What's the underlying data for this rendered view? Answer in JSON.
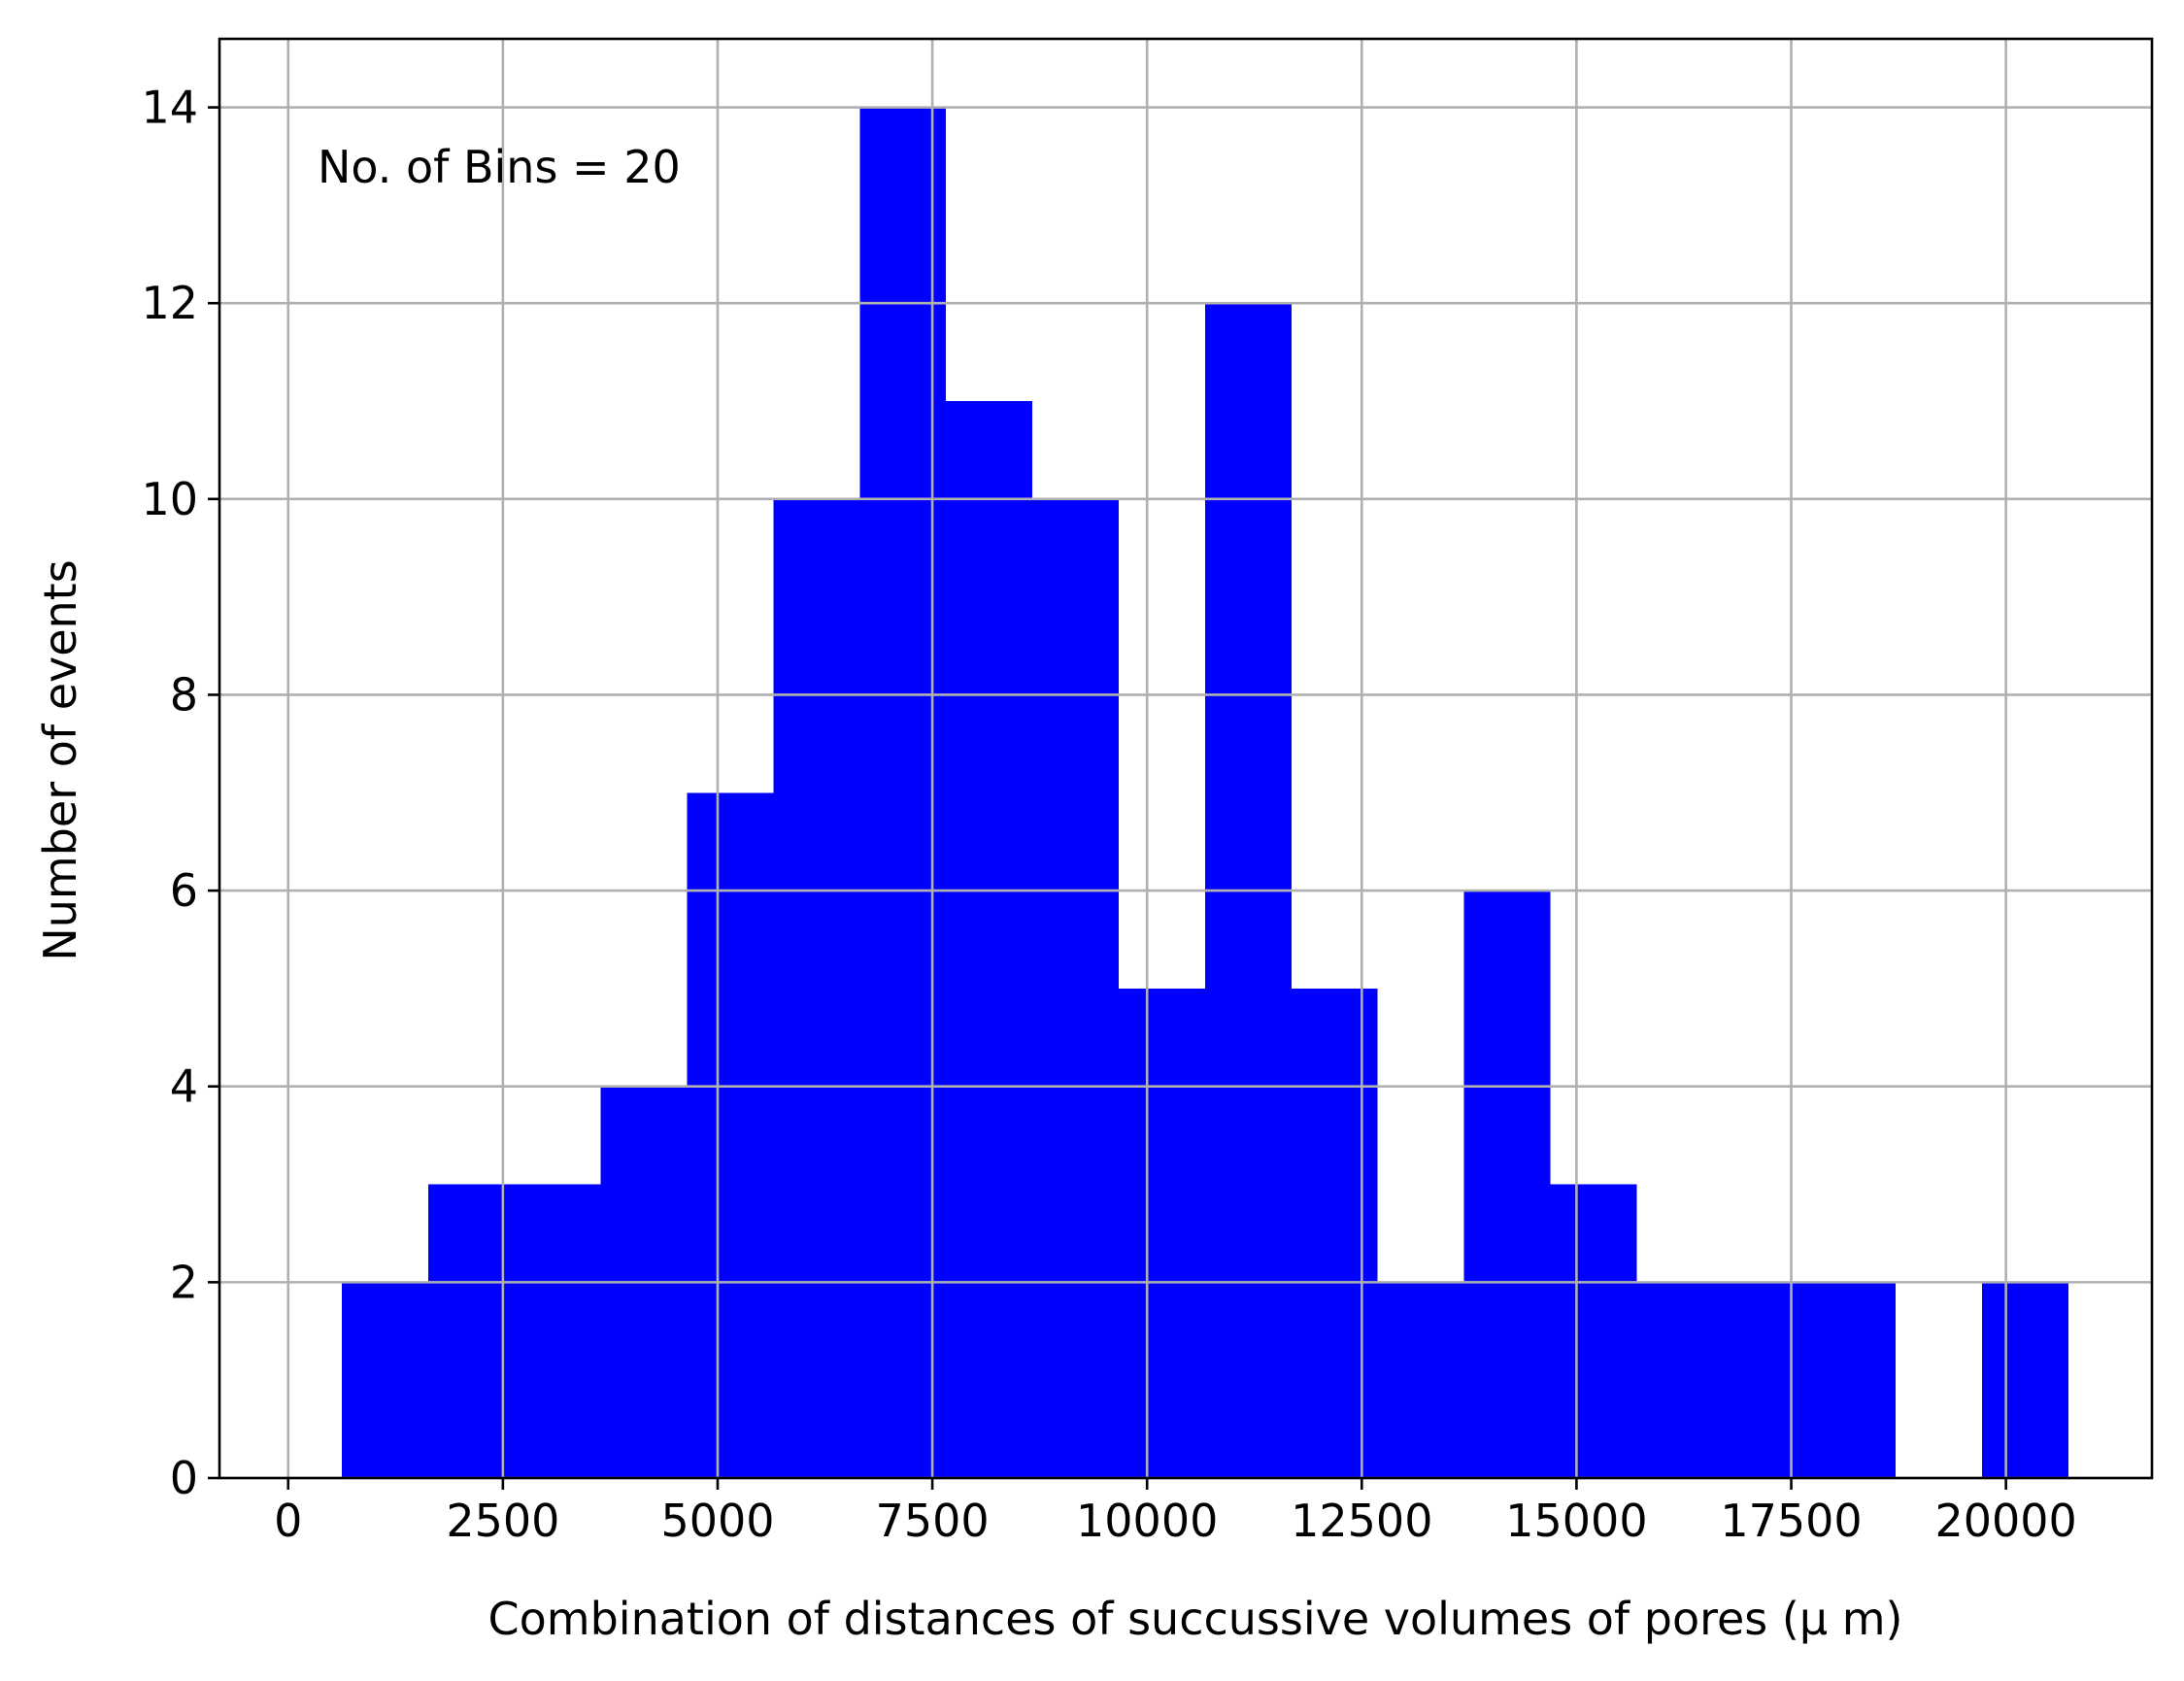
{
  "chart_data": {
    "type": "bar",
    "subtype": "histogram",
    "title": "",
    "xlabel": "Combination of distances of succussive volumes of pores  (μ m)",
    "ylabel": "Number of events",
    "annotation": "No. of Bins = 20",
    "bar_color": "#0000ff",
    "grid": true,
    "xlim": [
      -800,
      21700
    ],
    "ylim": [
      0,
      14.7
    ],
    "xticks": [
      0,
      2500,
      5000,
      7500,
      10000,
      12500,
      15000,
      17500,
      20000
    ],
    "yticks": [
      0,
      2,
      4,
      6,
      8,
      10,
      12,
      14
    ],
    "bins": {
      "edges": [
        625,
        1630,
        2635,
        3640,
        4645,
        5650,
        6655,
        7660,
        8665,
        9670,
        10675,
        11680,
        12685,
        13690,
        14695,
        15700,
        16705,
        17710,
        18715,
        19720,
        20725
      ],
      "counts": [
        2,
        3,
        3,
        4,
        7,
        10,
        14,
        11,
        10,
        5,
        12,
        5,
        2,
        6,
        3,
        2,
        2,
        2,
        0,
        2
      ]
    }
  }
}
